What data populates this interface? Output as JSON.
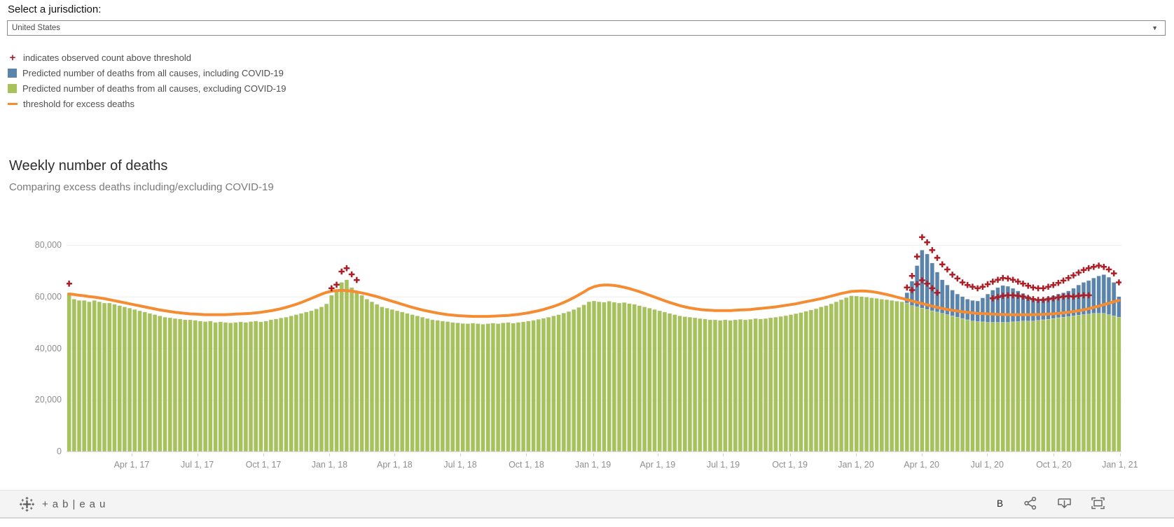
{
  "jurisdiction": {
    "label": "Select a jurisdiction:",
    "selected": "United States",
    "caret": "▼"
  },
  "legend": {
    "items": [
      {
        "marker": "plus",
        "color": "#ae1c24",
        "symbol": "+",
        "label": "indicates observed count above threshold"
      },
      {
        "marker": "square",
        "color": "#5b84ad",
        "symbol": "",
        "label": "Predicted number of deaths from all causes, including COVID-19"
      },
      {
        "marker": "square",
        "color": "#a7c25b",
        "symbol": "",
        "label": "Predicted number of deaths from all causes, excluding COVID-19"
      },
      {
        "marker": "line",
        "color": "#f58c31",
        "symbol": "",
        "label": "threshold for excess deaths"
      }
    ]
  },
  "chart": {
    "title": "Weekly number of deaths",
    "subtitle": "Comparing excess deaths including/excluding COVID-19"
  },
  "chart_data": {
    "type": "bar",
    "description": "Weekly deaths, stacked bars (predicted excluding COVID-19 in green; additional including COVID-19 in blue) with orange excess-death threshold line and red + marks where observed counts exceed threshold. Values in thousands of deaths.",
    "value_unit": "thousands of deaths per week",
    "weeks_start": "Jan 2017, weekly bars",
    "n_weeks": 209,
    "ylim_thousands": [
      0,
      93.5
    ],
    "grid": "horizontal, light gray at 20k steps",
    "legend_position": "top-left above chart",
    "y_ticks": [
      {
        "value": 0,
        "label": "0"
      },
      {
        "value": 20,
        "label": "20,000"
      },
      {
        "value": 40,
        "label": "40,000"
      },
      {
        "value": 60,
        "label": "60,000"
      },
      {
        "value": 80,
        "label": "80,000"
      }
    ],
    "x_tick_labels": [
      "Apr 1, 17",
      "Jul 1, 17",
      "Oct 1, 17",
      "Jan 1, 18",
      "Apr 1, 18",
      "Jul 1, 18",
      "Oct 1, 18",
      "Jan 1, 19",
      "Apr 1, 19",
      "Jul 1, 19",
      "Oct 1, 19",
      "Jan 1, 20",
      "Apr 1, 20",
      "Jul 1, 20",
      "Oct 1, 20",
      "Jan 1, 21"
    ],
    "x_tick_week_index": [
      12.9,
      25.9,
      39,
      52.1,
      65,
      78,
      91.1,
      104.3,
      117.1,
      130.1,
      143.3,
      156.4,
      169.4,
      182.4,
      195.6,
      208.7
    ],
    "colors": {
      "bar_excluding_covid": "#a7c25b",
      "bar_including_covid": "#5b84ad",
      "threshold_line": "#f58c31",
      "observed_plus": "#ae1c24",
      "gridline": "#ededed",
      "axis_line": "#d7d7d7",
      "axis_text": "#8e8e8e"
    },
    "series": {
      "predicted_excluding_covid": [
        61.5,
        59,
        58.5,
        58.5,
        58,
        58.5,
        58,
        57.5,
        57.5,
        57,
        56.5,
        56,
        55.5,
        55,
        54.5,
        54,
        53.5,
        53,
        52.5,
        52,
        51.8,
        51.5,
        51.3,
        51,
        51,
        50.8,
        50.5,
        50.3,
        50.5,
        50,
        50.2,
        50,
        49.8,
        50,
        50.2,
        50,
        50.3,
        50.5,
        50.2,
        50.5,
        51,
        51.3,
        51.7,
        52,
        52.5,
        53,
        53.5,
        54,
        54.5,
        55.2,
        56,
        57.2,
        60.5,
        62.5,
        65.5,
        66.5,
        63.5,
        62,
        60.5,
        59,
        58,
        57,
        56,
        55.5,
        55,
        54.5,
        54,
        53.5,
        53,
        52.5,
        52,
        51.5,
        51,
        50.8,
        50.5,
        50.3,
        50,
        49.8,
        49.6,
        49.5,
        49.7,
        49.5,
        49.3,
        49.5,
        49.7,
        49.5,
        49.8,
        50,
        49.7,
        50,
        50.2,
        50.5,
        50.8,
        51.2,
        51.6,
        52,
        52.5,
        53,
        53.6,
        54.2,
        55,
        55.8,
        56.8,
        58,
        58.3,
        58,
        57.8,
        58.2,
        57.8,
        57.5,
        57.7,
        57.3,
        57,
        56.5,
        56,
        55.5,
        55,
        54.5,
        54,
        53.5,
        53,
        52.5,
        52.2,
        52,
        51.8,
        51.5,
        51.3,
        51,
        51,
        50.8,
        51,
        50.8,
        51,
        51.2,
        51,
        51.2,
        51.5,
        51.3,
        51.5,
        51.8,
        52,
        52.3,
        52.6,
        53,
        53.4,
        53.8,
        54.3,
        54.8,
        55.3,
        56,
        56.5,
        57.2,
        58,
        58.8,
        59.6,
        60.3,
        60.2,
        60,
        59.8,
        59.5,
        59.3,
        59,
        58.8,
        58.5,
        58.2,
        58,
        57.5,
        56.5,
        56,
        55.5,
        55,
        54.5,
        54,
        53.5,
        53,
        52.5,
        52,
        51.5,
        51,
        50.5,
        50.3,
        50.2,
        50,
        50,
        50,
        50,
        50,
        50.2,
        50.3,
        50.5,
        50.5,
        50.5,
        50.8,
        51,
        51.2,
        51.5,
        51.8,
        52,
        52.2,
        52.5,
        52.8,
        53,
        53.2,
        53.5,
        53.5,
        53.5,
        53,
        52.5,
        52
      ],
      "total_including_covid_where_different": {
        "166": 61.5,
        "167": 66,
        "168": 72,
        "169": 78,
        "170": 76.5,
        "171": 73,
        "172": 69.5,
        "173": 66.5,
        "174": 64.5,
        "175": 62.5,
        "176": 61,
        "177": 60,
        "178": 59,
        "179": 58.5,
        "180": 58.3,
        "181": 59.5,
        "182": 61,
        "183": 62.5,
        "184": 63.5,
        "185": 64.3,
        "186": 64,
        "187": 63.2,
        "188": 62.2,
        "189": 61.2,
        "190": 60.2,
        "191": 59.5,
        "192": 59,
        "193": 59.3,
        "194": 59.8,
        "195": 60.3,
        "196": 61,
        "197": 61.5,
        "198": 62.2,
        "199": 63.2,
        "200": 64.5,
        "201": 65.5,
        "202": 66.2,
        "203": 67.2,
        "204": 68,
        "205": 68.5,
        "206": 67.5,
        "207": 65.5,
        "208": 60
      },
      "threshold": [
        61,
        60.8,
        60.5,
        60.3,
        60,
        59.8,
        59.5,
        59.2,
        58.8,
        58.4,
        58,
        57.6,
        57.2,
        56.8,
        56.4,
        56,
        55.6,
        55.2,
        54.8,
        54.5,
        54.2,
        53.9,
        53.7,
        53.5,
        53.3,
        53.2,
        53.1,
        53,
        53,
        53,
        53,
        53,
        53.1,
        53.2,
        53.3,
        53.4,
        53.5,
        53.7,
        53.9,
        54.2,
        54.5,
        54.9,
        55.3,
        55.8,
        56.4,
        57,
        57.7,
        58.5,
        59.3,
        60.1,
        60.9,
        61.6,
        62.1,
        62.3,
        62.4,
        62.3,
        62.1,
        61.8,
        61.4,
        61,
        60.5,
        60,
        59.4,
        58.8,
        58.2,
        57.6,
        57,
        56.4,
        55.8,
        55.3,
        54.8,
        54.4,
        54,
        53.6,
        53.3,
        53,
        52.8,
        52.6,
        52.5,
        52.4,
        52.3,
        52.3,
        52.3,
        52.3,
        52.4,
        52.5,
        52.6,
        52.7,
        52.9,
        53.1,
        53.4,
        53.7,
        54.1,
        54.5,
        55,
        55.6,
        56.2,
        56.9,
        57.7,
        58.6,
        59.6,
        60.7,
        61.8,
        63,
        63.8,
        64.3,
        64.5,
        64.5,
        64.3,
        64,
        63.6,
        63.1,
        62.5,
        61.9,
        61.2,
        60.5,
        59.8,
        59.1,
        58.4,
        57.7,
        57.1,
        56.5,
        56,
        55.6,
        55.3,
        55,
        54.8,
        54.7,
        54.6,
        54.6,
        54.6,
        54.6,
        54.7,
        54.8,
        54.9,
        55,
        55.2,
        55.4,
        55.6,
        55.8,
        56,
        56.3,
        56.6,
        56.9,
        57.2,
        57.6,
        58,
        58.4,
        58.8,
        59.2,
        59.7,
        60.2,
        60.7,
        61.2,
        61.6,
        62,
        62.1,
        62.2,
        62.1,
        61.9,
        61.6,
        61.2,
        60.8,
        60.3,
        59.8,
        59.3,
        58.8,
        58.3,
        57.8,
        57.3,
        56.8,
        56.3,
        55.8,
        55.4,
        55,
        54.7,
        54.4,
        54.1,
        53.9,
        53.7,
        53.5,
        53.4,
        53.3,
        53.2,
        53.1,
        53.1,
        53,
        53,
        53,
        53,
        53,
        53,
        53.1,
        53.1,
        53.2,
        53.3,
        53.5,
        53.7,
        53.9,
        54.2,
        54.5,
        54.9,
        55.3,
        55.8,
        56.3,
        56.9,
        57.4,
        58,
        58.5
      ],
      "observed_above_threshold_all_causes": {
        "0": 65,
        "52": 63.2,
        "53": 64.6,
        "54": 69.7,
        "55": 71,
        "56": 68.6,
        "57": 66.4,
        "166": 63.5,
        "167": 68,
        "168": 75.5,
        "169": 83,
        "170": 81,
        "171": 78,
        "172": 75,
        "173": 72.5,
        "174": 70.5,
        "175": 68.5,
        "176": 67,
        "177": 65.5,
        "178": 64.5,
        "179": 63.8,
        "180": 63.2,
        "181": 63.8,
        "182": 64.8,
        "183": 65.8,
        "184": 66.5,
        "185": 67.2,
        "186": 67,
        "187": 66.5,
        "188": 65.8,
        "189": 65,
        "190": 64.2,
        "191": 63.5,
        "192": 63.2,
        "193": 63.2,
        "194": 63.8,
        "195": 64.5,
        "196": 65.3,
        "197": 66.2,
        "198": 67.2,
        "199": 68.2,
        "200": 69.3,
        "201": 70.3,
        "202": 71,
        "203": 71.5,
        "204": 72,
        "205": 71.5,
        "206": 70.5,
        "207": 69,
        "208": 65.5
      },
      "observed_above_threshold_excluding_covid": {
        "167": 62.5,
        "168": 64.8,
        "169": 66.3,
        "170": 65,
        "171": 63.2,
        "172": 61.5,
        "183": 59.3,
        "184": 59.8,
        "185": 60.3,
        "186": 60.5,
        "187": 60.5,
        "188": 60.3,
        "189": 60,
        "190": 59.5,
        "191": 59,
        "192": 58.7,
        "193": 58.7,
        "194": 59,
        "195": 59.3,
        "196": 59.7,
        "197": 60,
        "198": 60.2,
        "199": 60,
        "200": 60.3,
        "201": 60.5,
        "202": 60.5
      }
    }
  },
  "footer": {
    "brand": "+ab|eau",
    "button_b": "B"
  }
}
